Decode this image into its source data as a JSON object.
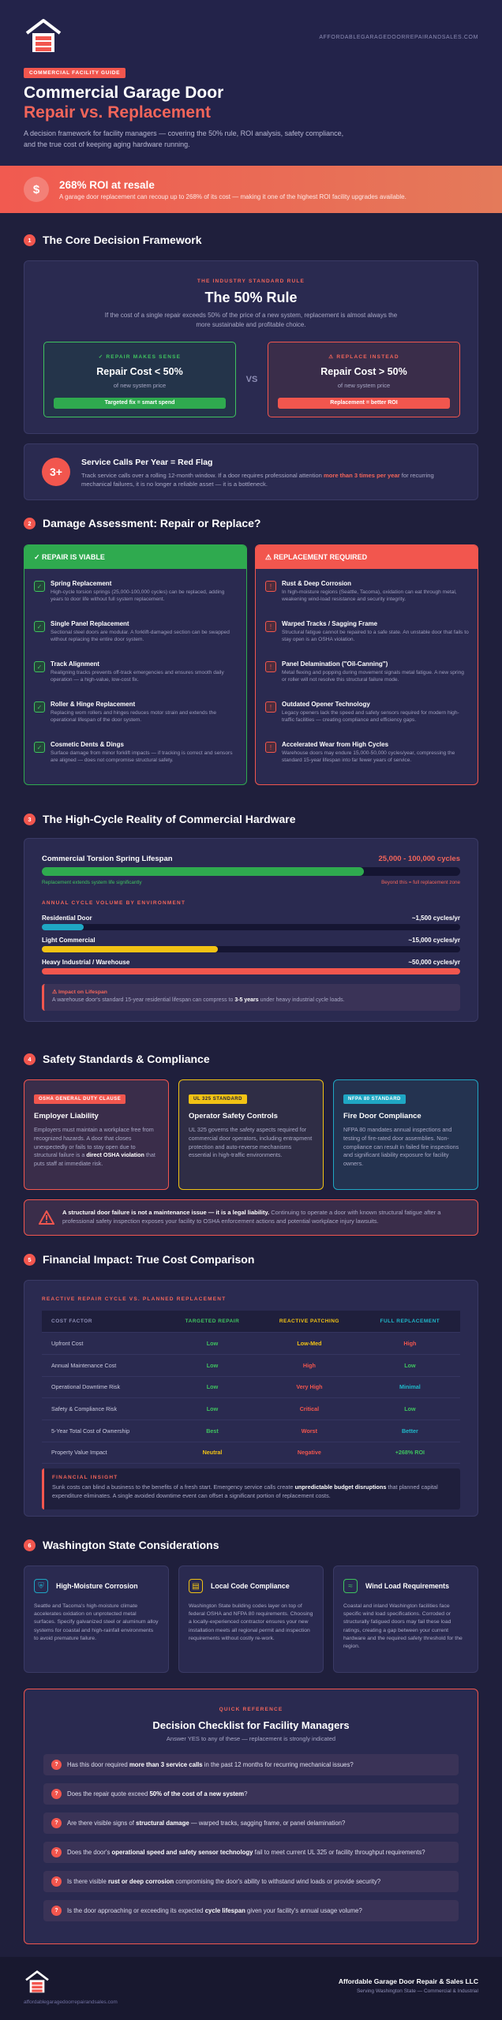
{
  "header": {
    "site": "AFFORDABLEGARAGEDOORREPAIRANDSALES.COM",
    "tag": "COMMERCIAL FACILITY GUIDE",
    "title_line1": "Commercial Garage Door",
    "title_line2": "Repair vs. Replacement",
    "intro": "A decision framework for facility managers — covering the 50% rule, ROI analysis, safety compliance, and the true cost of keeping aging hardware running."
  },
  "roi": {
    "icon": "$",
    "title": "268% ROI at resale",
    "text": "A garage door replacement can recoup up to 268% of its cost — making it one of the highest ROI facility upgrades available."
  },
  "s1": {
    "num": "1",
    "title": "The Core Decision Framework",
    "kicker": "THE INDUSTRY STANDARD RULE",
    "rule": "The 50% Rule",
    "desc": "If the cost of a single repair exceeds 50% of the price of a new system, replacement is almost always the more sustainable and profitable choice.",
    "left": {
      "kicker": "✓ REPAIR MAKES SENSE",
      "title": "Repair Cost < 50%",
      "sub": "of new system price",
      "pill": "Targeted fix = smart spend"
    },
    "vs": "VS",
    "right": {
      "kicker": "⚠ REPLACE INSTEAD",
      "title": "Repair Cost > 50%",
      "sub": "of new system price",
      "pill": "Replacement = better ROI"
    },
    "calls": {
      "badge": "3+",
      "title": "Service Calls Per Year = Red Flag",
      "text_a": "Track service calls over a rolling 12-month window. If a door requires professional attention ",
      "text_b": "more than 3 times per year",
      "text_c": " for recurring mechanical failures, it is no longer a reliable asset — it is a bottleneck."
    }
  },
  "s2": {
    "num": "2",
    "title": "Damage Assessment: Repair or Replace?",
    "repair_head": "✓ REPAIR IS VIABLE",
    "repair": [
      {
        "t": "Spring Replacement",
        "d": "High-cycle torsion springs (25,000-100,000 cycles) can be replaced, adding years to door life without full system replacement."
      },
      {
        "t": "Single Panel Replacement",
        "d": "Sectional steel doors are modular. A forklift-damaged section can be swapped without replacing the entire door system."
      },
      {
        "t": "Track Alignment",
        "d": "Realigning tracks prevents off-track emergencies and ensures smooth daily operation — a high-value, low-cost fix."
      },
      {
        "t": "Roller & Hinge Replacement",
        "d": "Replacing worn rollers and hinges reduces motor strain and extends the operational lifespan of the door system."
      },
      {
        "t": "Cosmetic Dents & Dings",
        "d": "Surface damage from minor forklift impacts — if tracking is correct and sensors are aligned — does not compromise structural safety."
      }
    ],
    "replace_head": "⚠ REPLACEMENT REQUIRED",
    "replace": [
      {
        "t": "Rust & Deep Corrosion",
        "d": "In high-moisture regions (Seattle, Tacoma), oxidation can eat through metal, weakening wind-load resistance and security integrity."
      },
      {
        "t": "Warped Tracks / Sagging Frame",
        "d": "Structural fatigue cannot be repaired to a safe state. An unstable door that fails to stay open is an OSHA violation."
      },
      {
        "t": "Panel Delamination (\"Oil-Canning\")",
        "d": "Metal flexing and popping during movement signals metal fatigue. A new spring or roller will not resolve this structural failure mode."
      },
      {
        "t": "Outdated Opener Technology",
        "d": "Legacy openers lack the speed and safety sensors required for modern high-traffic facilities — creating compliance and efficiency gaps."
      },
      {
        "t": "Accelerated Wear from High Cycles",
        "d": "Warehouse doors may endure 15,000-50,000 cycles/year, compressing the standard 15-year lifespan into far fewer years of service."
      }
    ]
  },
  "s3": {
    "num": "3",
    "title": "The High-Cycle Reality of Commercial Hardware",
    "spring_title": "Commercial Torsion Spring Lifespan",
    "spring_value": "25,000 - 100,000 cycles",
    "spring_level": 0.77,
    "spring_left": "Replacement extends system life significantly",
    "spring_right": "Beyond this = full replacement zone",
    "vol_kicker": "ANNUAL CYCLE VOLUME BY ENVIRONMENT",
    "volumes": [
      {
        "label": "Residential Door",
        "value": "~1,500 cycles/yr",
        "level": 0.1,
        "color": "#1fa7c4"
      },
      {
        "label": "Light Commercial",
        "value": "~15,000 cycles/yr",
        "level": 0.42,
        "color": "#f2c314"
      },
      {
        "label": "Heavy Industrial / Warehouse",
        "value": "~50,000 cycles/yr",
        "level": 1,
        "color": "#f2564e"
      }
    ],
    "impact_kicker": "⚠ Impact on Lifespan",
    "impact_a": "A warehouse door's standard 15-year residential lifespan can compress to ",
    "impact_b": "3-5 years",
    "impact_c": " under heavy industrial cycle loads."
  },
  "s4": {
    "num": "4",
    "title": "Safety Standards & Compliance",
    "cards": [
      {
        "tag": "OSHA GENERAL DUTY CLAUSE",
        "title": "Employer Liability",
        "text_a": "Employers must maintain a workplace free from recognized hazards. A door that closes unexpectedly or fails to stay open due to structural failure is a ",
        "text_b": "direct OSHA violation",
        "text_c": " that puts staff at immediate risk."
      },
      {
        "tag": "UL 325 STANDARD",
        "title": "Operator Safety Controls",
        "text_a": "UL 325 governs the safety aspects required for commercial door operators, including entrapment protection and auto-reverse mechanisms essential in high-traffic environments.",
        "text_b": "",
        "text_c": ""
      },
      {
        "tag": "NFPA 80 STANDARD",
        "title": "Fire Door Compliance",
        "text_a": "NFPA 80 mandates annual inspections and testing of fire-rated door assemblies. Non-compliance can result in failed fire inspections and significant liability exposure for facility owners.",
        "text_b": "",
        "text_c": ""
      }
    ],
    "warn_a": "A structural door failure is not a maintenance issue — it is a legal liability.",
    "warn_b": " Continuing to operate a door with known structural fatigue after a professional safety inspection exposes your facility to OSHA enforcement actions and potential workplace injury lawsuits."
  },
  "s5": {
    "num": "5",
    "title": "Financial Impact: True Cost Comparison",
    "kicker": "REACTIVE REPAIR CYCLE VS. PLANNED REPLACEMENT",
    "headers": [
      "COST FACTOR",
      "TARGETED REPAIR",
      "REACTIVE PATCHING",
      "FULL REPLACEMENT"
    ],
    "rows": [
      [
        "Upfront Cost",
        "Low",
        "Low-Med",
        "High"
      ],
      [
        "Annual Maintenance Cost",
        "Low",
        "High",
        "Low"
      ],
      [
        "Operational Downtime Risk",
        "Low",
        "Very High",
        "Minimal"
      ],
      [
        "Safety & Compliance Risk",
        "Low",
        "Critical",
        "Low"
      ],
      [
        "5-Year Total Cost of Ownership",
        "Best",
        "Worst",
        "Better"
      ],
      [
        "Property Value Impact",
        "Neutral",
        "Negative",
        "+268% ROI"
      ]
    ],
    "cell_colors": [
      [
        "#3fc35f",
        "#f2c314",
        "#f2564e"
      ],
      [
        "#3fc35f",
        "#f2564e",
        "#3fc35f"
      ],
      [
        "#3fc35f",
        "#f2564e",
        "#1fb8c9"
      ],
      [
        "#3fc35f",
        "#f2564e",
        "#3fc35f"
      ],
      [
        "#3fc35f",
        "#f2564e",
        "#1fb8c9"
      ],
      [
        "#f2c314",
        "#f2564e",
        "#3fc35f"
      ]
    ],
    "insight_kicker": "FINANCIAL INSIGHT",
    "insight_a": "Sunk costs can blind a business to the benefits of a fresh start. Emergency service calls create ",
    "insight_b": "unpredictable budget disruptions",
    "insight_c": " that planned capital expenditure eliminates. A single avoided downtime event can offset a significant portion of replacement costs."
  },
  "s6": {
    "num": "6",
    "title": "Washington State Considerations",
    "cards": [
      {
        "title": "High-Moisture Corrosion",
        "text": "Seattle and Tacoma's high-moisture climate accelerates oxidation on unprotected metal surfaces. Specify galvanized steel or aluminum alloy systems for coastal and high-rainfall environments to avoid premature failure."
      },
      {
        "title": "Local Code Compliance",
        "text": "Washington State building codes layer on top of federal OSHA and NFPA 80 requirements. Choosing a locally-experienced contractor ensures your new installation meets all regional permit and inspection requirements without costly re-work."
      },
      {
        "title": "Wind Load Requirements",
        "text": "Coastal and inland Washington facilities face specific wind load specifications. Corroded or structurally fatigued doors may fail these load ratings, creating a gap between your current hardware and the required safety threshold for the region."
      }
    ]
  },
  "checklist": {
    "kicker": "QUICK REFERENCE",
    "title": "Decision Checklist for Facility Managers",
    "sub": "Answer YES to any of these — replacement is strongly indicated",
    "items": [
      {
        "a": "Has this door required ",
        "b": "more than 3 service calls",
        "c": " in the past 12 months for recurring mechanical issues?"
      },
      {
        "a": "Does the repair quote exceed ",
        "b": "50% of the cost of a new system",
        "c": "?"
      },
      {
        "a": "Are there visible signs of ",
        "b": "structural damage",
        "c": " — warped tracks, sagging frame, or panel delamination?"
      },
      {
        "a": "Does the door's ",
        "b": "operational speed and safety sensor technology",
        "c": " fail to meet current UL 325 or facility throughput requirements?"
      },
      {
        "a": "Is there visible ",
        "b": "rust or deep corrosion",
        "c": " compromising the door's ability to withstand wind loads or provide security?"
      },
      {
        "a": "Is the door approaching or exceeding its expected ",
        "b": "cycle lifespan",
        "c": " given your facility's annual usage volume?"
      }
    ]
  },
  "footer": {
    "url": "affordablegaragedoorrepairandsales.com",
    "company": "Affordable Garage Door Repair & Sales LLC",
    "tagline": "Serving Washington State — Commercial & Industrial"
  }
}
